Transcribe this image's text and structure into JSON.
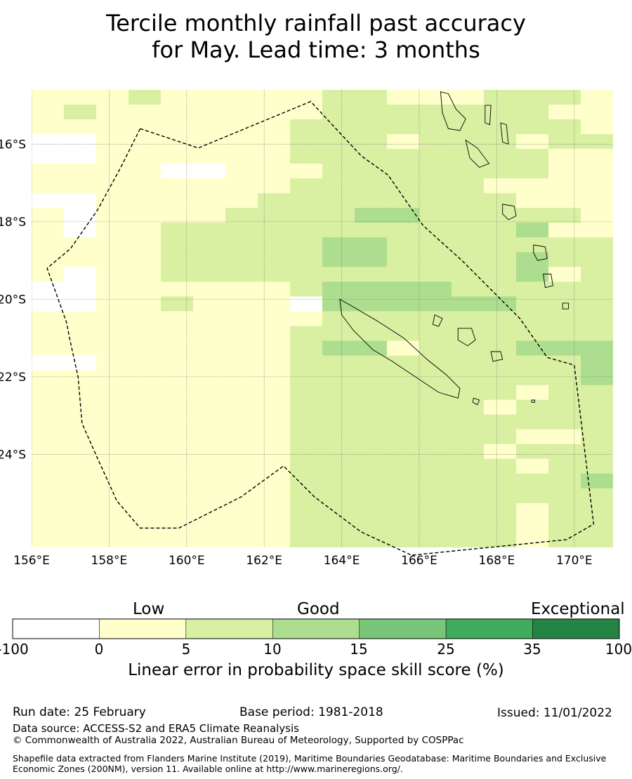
{
  "title": {
    "line1": "Tercile monthly rainfall past accuracy",
    "line2": "for May. Lead time: 3 months"
  },
  "map": {
    "lon_range": [
      156,
      171
    ],
    "lat_range": [
      -26.4,
      -14.6
    ],
    "lon_ticks": [
      {
        "value": 156,
        "label": "156°E"
      },
      {
        "value": 158,
        "label": "158°E"
      },
      {
        "value": 160,
        "label": "160°E"
      },
      {
        "value": 162,
        "label": "162°E"
      },
      {
        "value": 164,
        "label": "164°E"
      },
      {
        "value": 166,
        "label": "166°E"
      },
      {
        "value": 168,
        "label": "168°E"
      },
      {
        "value": 170,
        "label": "170°E"
      }
    ],
    "lat_ticks": [
      {
        "value": -16,
        "label": "16°S"
      },
      {
        "value": -18,
        "label": "18°S"
      },
      {
        "value": -20,
        "label": "20°S"
      },
      {
        "value": -22,
        "label": "22°S"
      },
      {
        "value": -24,
        "label": "24°S"
      }
    ],
    "cell_size_deg": 0.833,
    "skill_class_rows_north_to_south": [
      "111211111221112221",
      "121111111222222211",
      "111111112222222221",
      "001111112221222122",
      "001111112222222211",
      "111100111222222211",
      "111111112222221111",
      "001111122222222111",
      "101111222233222221",
      "101122222222222311",
      "111122222332222222",
      "111122222332222322",
      "101122222222222312",
      "001111112333322222",
      "001121110333333222",
      "111111111222222222",
      "111111112222222222",
      "111111112331222333",
      "001111112222222223",
      "111111112222222223",
      "111111112222222122",
      "111111112222221222",
      "111111112222222222",
      "111111112222222112",
      "111111112222221222",
      "111111112222222122",
      "111111112222222223",
      "111111112222222222",
      "111111112222222122",
      "111111112222222122",
      "111111112222222122"
    ],
    "boundary_polygon": [
      [
        158.8,
        -15.6
      ],
      [
        160.3,
        -16.1
      ],
      [
        163.2,
        -14.9
      ],
      [
        164.5,
        -16.3
      ],
      [
        165.2,
        -16.8
      ],
      [
        166.1,
        -18.1
      ],
      [
        167.1,
        -19.0
      ],
      [
        167.8,
        -19.7
      ],
      [
        168.6,
        -20.5
      ],
      [
        169.3,
        -21.5
      ],
      [
        170.0,
        -21.7
      ],
      [
        170.5,
        -25.8
      ],
      [
        169.8,
        -26.2
      ],
      [
        168.8,
        -26.3
      ],
      [
        165.8,
        -26.6
      ],
      [
        164.5,
        -26.0
      ],
      [
        163.3,
        -25.1
      ],
      [
        162.5,
        -24.3
      ],
      [
        161.4,
        -25.1
      ],
      [
        159.8,
        -25.9
      ],
      [
        158.8,
        -25.9
      ],
      [
        158.2,
        -25.2
      ],
      [
        157.7,
        -24.1
      ],
      [
        157.3,
        -23.2
      ],
      [
        157.2,
        -22.0
      ],
      [
        157.0,
        -21.1
      ],
      [
        156.9,
        -20.6
      ],
      [
        156.4,
        -19.2
      ],
      [
        157.0,
        -18.7
      ],
      [
        157.7,
        -17.7
      ],
      [
        158.3,
        -16.6
      ]
    ]
  },
  "colorbar": {
    "category_labels": [
      "Low",
      "Good",
      "Exceptional"
    ],
    "bins": [
      {
        "from": -100,
        "to": 0,
        "color": "#ffffff"
      },
      {
        "from": 0,
        "to": 5,
        "color": "#ffffcc"
      },
      {
        "from": 5,
        "to": 10,
        "color": "#d9f0a3"
      },
      {
        "from": 10,
        "to": 15,
        "color": "#addd8e"
      },
      {
        "from": 15,
        "to": 25,
        "color": "#78c679"
      },
      {
        "from": 25,
        "to": 35,
        "color": "#41ab5d"
      },
      {
        "from": 35,
        "to": 100,
        "color": "#238443"
      }
    ],
    "tick_labels": [
      "-100",
      "0",
      "5",
      "10",
      "15",
      "25",
      "35",
      "100"
    ],
    "axis_title": "Linear error in probability space skill score (%)"
  },
  "footer": {
    "run_date": "Run date: 25 February",
    "base_period": "Base period: 1981-2018",
    "issued": "Issued: 11/01/2022",
    "data_source": "Data source: ACCESS-S2 and ERA5 Climate Reanalysis",
    "copyright": "© Commonwealth of Australia 2022, Australian Bureau of Meteorology, Supported by COSPPac",
    "shapefile_note": "Shapefile data extracted from Flanders Marine Institute (2019), Maritime Boundaries Geodatabase: Maritime Boundaries and Exclusive Economic Zones (200NM), version 11. Available online at http://www.marineregions.org/."
  }
}
